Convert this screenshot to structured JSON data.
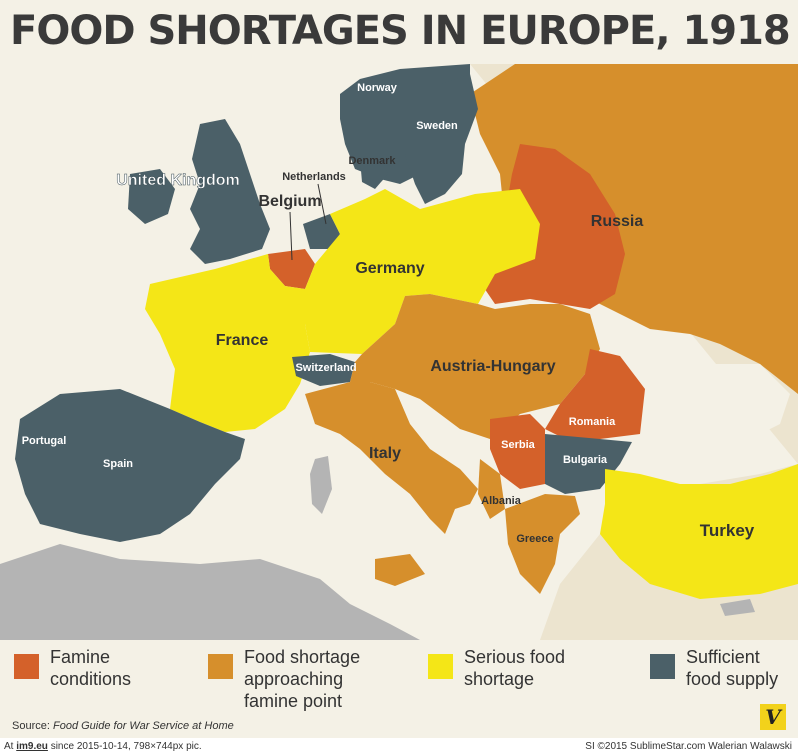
{
  "title": "FOOD SHORTAGES IN EUROPE, 1918",
  "colors": {
    "famine": "#d4612a",
    "approaching": "#d68f2c",
    "serious": "#f4e617",
    "sufficient": "#4b6068",
    "neutral": "#b4b4b4",
    "land": "#ece4cf",
    "sea": "#f4f1e6"
  },
  "countries": {
    "united_kingdom": "United Kingdom",
    "norway": "Norway",
    "sweden": "Sweden",
    "denmark": "Denmark",
    "netherlands": "Netherlands",
    "belgium": "Belgium",
    "germany": "Germany",
    "russia": "Russia",
    "france": "France",
    "switzerland": "Switzerland",
    "austria_hungary": "Austria-Hungary",
    "romania": "Romania",
    "portugal": "Portugal",
    "spain": "Spain",
    "italy": "Italy",
    "serbia": "Serbia",
    "bulgaria": "Bulgaria",
    "albania": "Albania",
    "greece": "Greece",
    "turkey": "Turkey"
  },
  "legend": {
    "famine": "Famine conditions",
    "approaching": "Food shortage approaching famine point",
    "serious": "Serious food shortage",
    "sufficient": "Sufficient food supply"
  },
  "source": {
    "prefix": "Source:",
    "title": "Food Guide for War Service at Home"
  },
  "logo": "V",
  "footer": {
    "left_prefix": "At",
    "left_site": "im9.eu",
    "left_rest": "since 2015-10-14, 798×744px pic.",
    "right": "SI ©2015 SublimeStar.com Walerian Walawski"
  }
}
